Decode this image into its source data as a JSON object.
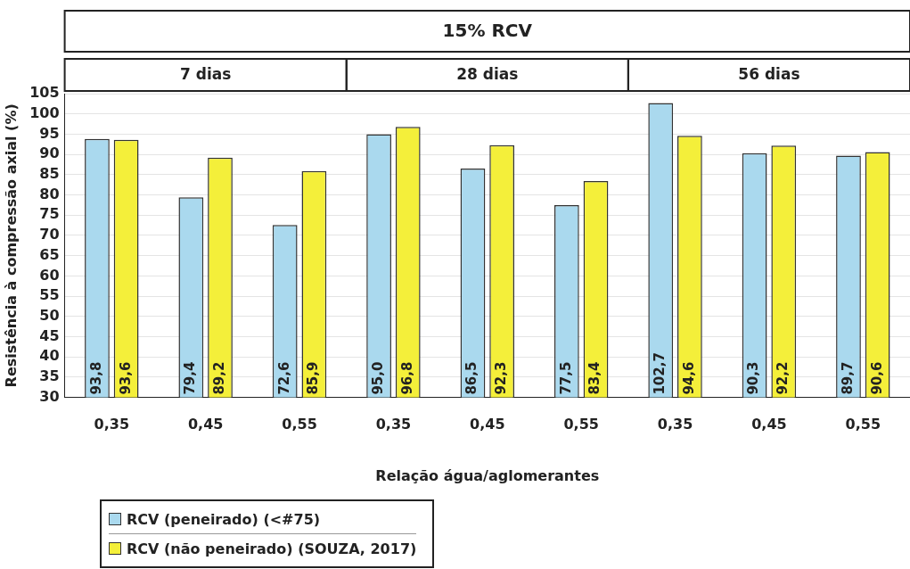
{
  "chart_data": {
    "type": "bar",
    "title": "15% RCV",
    "annotations": [
      "7 dias",
      "28 dias",
      "56 dias"
    ],
    "xlabel": "Relação água/aglomerantes",
    "ylabel": "Resistência à compressão axial (%)",
    "categories": [
      "0,35",
      "0,45",
      "0,55",
      "0,35",
      "0,45",
      "0,55",
      "0,35",
      "0,45",
      "0,55"
    ],
    "series": [
      {
        "name": "RCV (peneirado) (<#75)",
        "color": "#aad9ee",
        "values": [
          93.8,
          79.4,
          72.6,
          95.0,
          86.5,
          77.5,
          102.7,
          90.3,
          89.7
        ],
        "value_labels": [
          "93,8",
          "79,4",
          "72,6",
          "95,0",
          "86,5",
          "77,5",
          "102,7",
          "90,3",
          "89,7"
        ]
      },
      {
        "name": "RCV (não peneirado) (SOUZA, 2017)",
        "color": "#f4ef3a",
        "values": [
          93.6,
          89.2,
          85.9,
          96.8,
          92.3,
          83.4,
          94.6,
          92.2,
          90.6
        ],
        "value_labels": [
          "93,6",
          "89,2",
          "85,9",
          "96,8",
          "92,3",
          "83,4",
          "94,6",
          "92,2",
          "90,6"
        ]
      }
    ],
    "ylim": [
      30,
      105
    ],
    "yticks": [
      30,
      35,
      40,
      45,
      50,
      55,
      60,
      65,
      70,
      75,
      80,
      85,
      90,
      95,
      100,
      105
    ],
    "grid": "y",
    "legend": "bottom left"
  }
}
